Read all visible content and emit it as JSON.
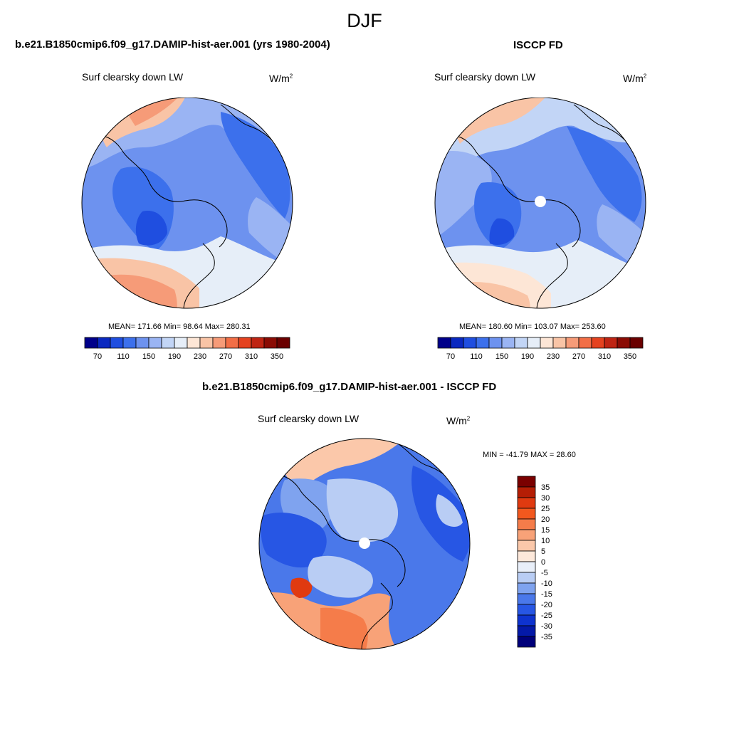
{
  "figure": {
    "title": "DJF",
    "units": {
      "base": "W/m",
      "exp": "2"
    }
  },
  "chart_data": [
    {
      "type": "heatmap",
      "projection": "north-polar-stereographic",
      "title": "b.e21.B1850cmip6.f09_g17.DAMIP-hist-aer.001 (yrs 1980-2004)",
      "variable": "Surf clearsky down LW",
      "units": "W/m2",
      "stats": {
        "mean": "171.66",
        "min": "98.64",
        "max": "280.31"
      },
      "stats_text": "MEAN= 171.66  Min=  98.64  Max= 280.31",
      "levels": [
        70,
        90,
        110,
        130,
        150,
        170,
        190,
        210,
        230,
        250,
        270,
        290,
        310,
        330,
        350
      ],
      "level_labels": [
        "70",
        "110",
        "150",
        "190",
        "230",
        "270",
        "310",
        "350"
      ],
      "colors": [
        "#00008a",
        "#0a28c0",
        "#1f4ee0",
        "#3c70ec",
        "#6d92ef",
        "#9ab4f3",
        "#c2d5f6",
        "#e6eef8",
        "#fde6d6",
        "#f9c4a6",
        "#f69b78",
        "#f26e46",
        "#e5421f",
        "#bf2413",
        "#8a0b04",
        "#6a0000"
      ],
      "colorbar_orientation": "horizontal"
    },
    {
      "type": "heatmap",
      "projection": "north-polar-stereographic",
      "title": "ISCCP FD",
      "variable": "Surf clearsky down LW",
      "units": "W/m2",
      "stats": {
        "mean": "180.60",
        "min": "103.07",
        "max": "253.60"
      },
      "stats_text": "MEAN= 180.60  Min= 103.07  Max= 253.60",
      "levels": [
        70,
        90,
        110,
        130,
        150,
        170,
        190,
        210,
        230,
        250,
        270,
        290,
        310,
        330,
        350
      ],
      "level_labels": [
        "70",
        "110",
        "150",
        "190",
        "230",
        "270",
        "310",
        "350"
      ],
      "colors": [
        "#00008a",
        "#0a28c0",
        "#1f4ee0",
        "#3c70ec",
        "#6d92ef",
        "#9ab4f3",
        "#c2d5f6",
        "#e6eef8",
        "#fde6d6",
        "#f9c4a6",
        "#f69b78",
        "#f26e46",
        "#e5421f",
        "#bf2413",
        "#8a0b04",
        "#6a0000"
      ],
      "colorbar_orientation": "horizontal"
    },
    {
      "type": "heatmap",
      "projection": "north-polar-stereographic",
      "title": "b.e21.B1850cmip6.f09_g17.DAMIP-hist-aer.001 - ISCCP FD",
      "variable": "Surf clearsky down LW",
      "units": "W/m2",
      "stats": {
        "min": "-41.79",
        "max": "28.60"
      },
      "stats_text": "MIN = -41.79 MAX =  28.60",
      "levels": [
        35,
        30,
        25,
        20,
        15,
        10,
        5,
        0,
        -5,
        -10,
        -15,
        -20,
        -25,
        -30,
        -35
      ],
      "level_labels": [
        "35",
        "30",
        "25",
        "20",
        "15",
        "10",
        "5",
        "0",
        "-5",
        "-10",
        "-15",
        "-20",
        "-25",
        "-30",
        "-35"
      ],
      "colors": [
        "#7a0000",
        "#b51e05",
        "#e03a10",
        "#f2581e",
        "#f57c4a",
        "#f8a278",
        "#fbc8aa",
        "#fde8da",
        "#e9eff9",
        "#b9cdf4",
        "#7fa3ef",
        "#4a78ea",
        "#2756e4",
        "#0e33cf",
        "#0419a8",
        "#00007a"
      ],
      "colorbar_orientation": "vertical"
    }
  ]
}
